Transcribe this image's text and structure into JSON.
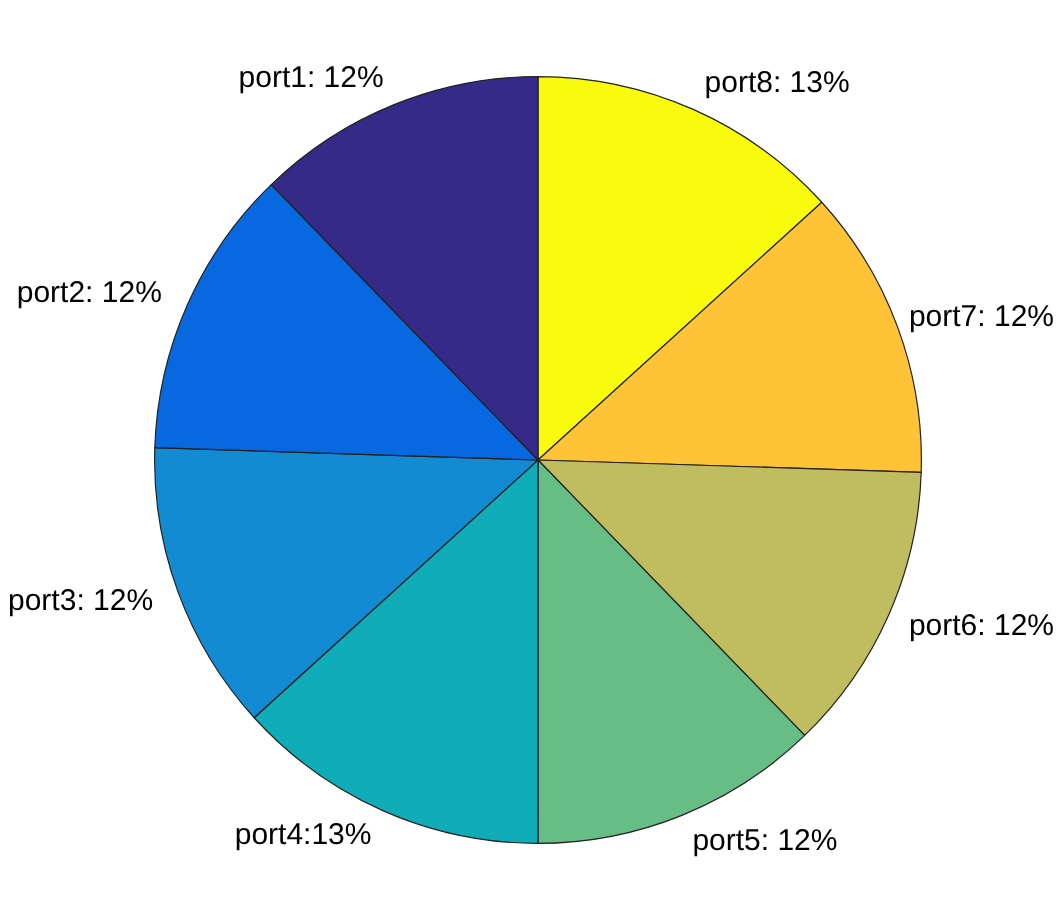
{
  "chart_data": {
    "type": "pie",
    "categories": [
      "port1: 12%",
      "port2: 12%",
      "port3: 12%",
      "port4:13%",
      "port5: 12%",
      "port6: 12%",
      "port7: 12%",
      "port8: 13%"
    ],
    "values": [
      12,
      12,
      12,
      13,
      12,
      12,
      12,
      13
    ],
    "colors": [
      "#352a87",
      "#0868e0",
      "#138bd2",
      "#10adb9",
      "#66be86",
      "#c0bc60",
      "#fec337",
      "#f9fb0e"
    ],
    "legend": false
  }
}
